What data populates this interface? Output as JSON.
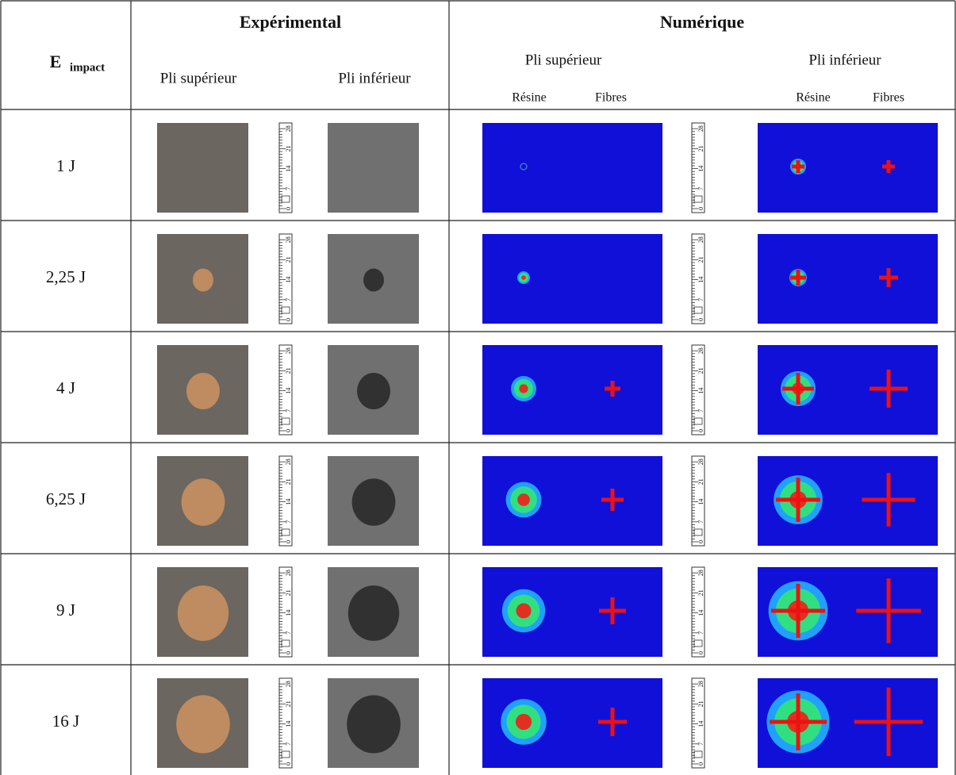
{
  "header": {
    "energy": {
      "main": "E",
      "sub": "impact"
    },
    "experimental": {
      "title": "Expérimental",
      "upper": "Pli supérieur",
      "lower": "Pli inférieur"
    },
    "numerical": {
      "title": "Numérique",
      "upper": "Pli supérieur",
      "lower": "Pli inférieur",
      "resin": "Résine",
      "fibres": "Fibres"
    }
  },
  "ruler": [
    "0",
    "7",
    "14",
    "21",
    "28"
  ],
  "rows": [
    "1 J",
    "2,25 J",
    "4 J",
    "6,25 J",
    "9 J",
    "16 J"
  ]
}
